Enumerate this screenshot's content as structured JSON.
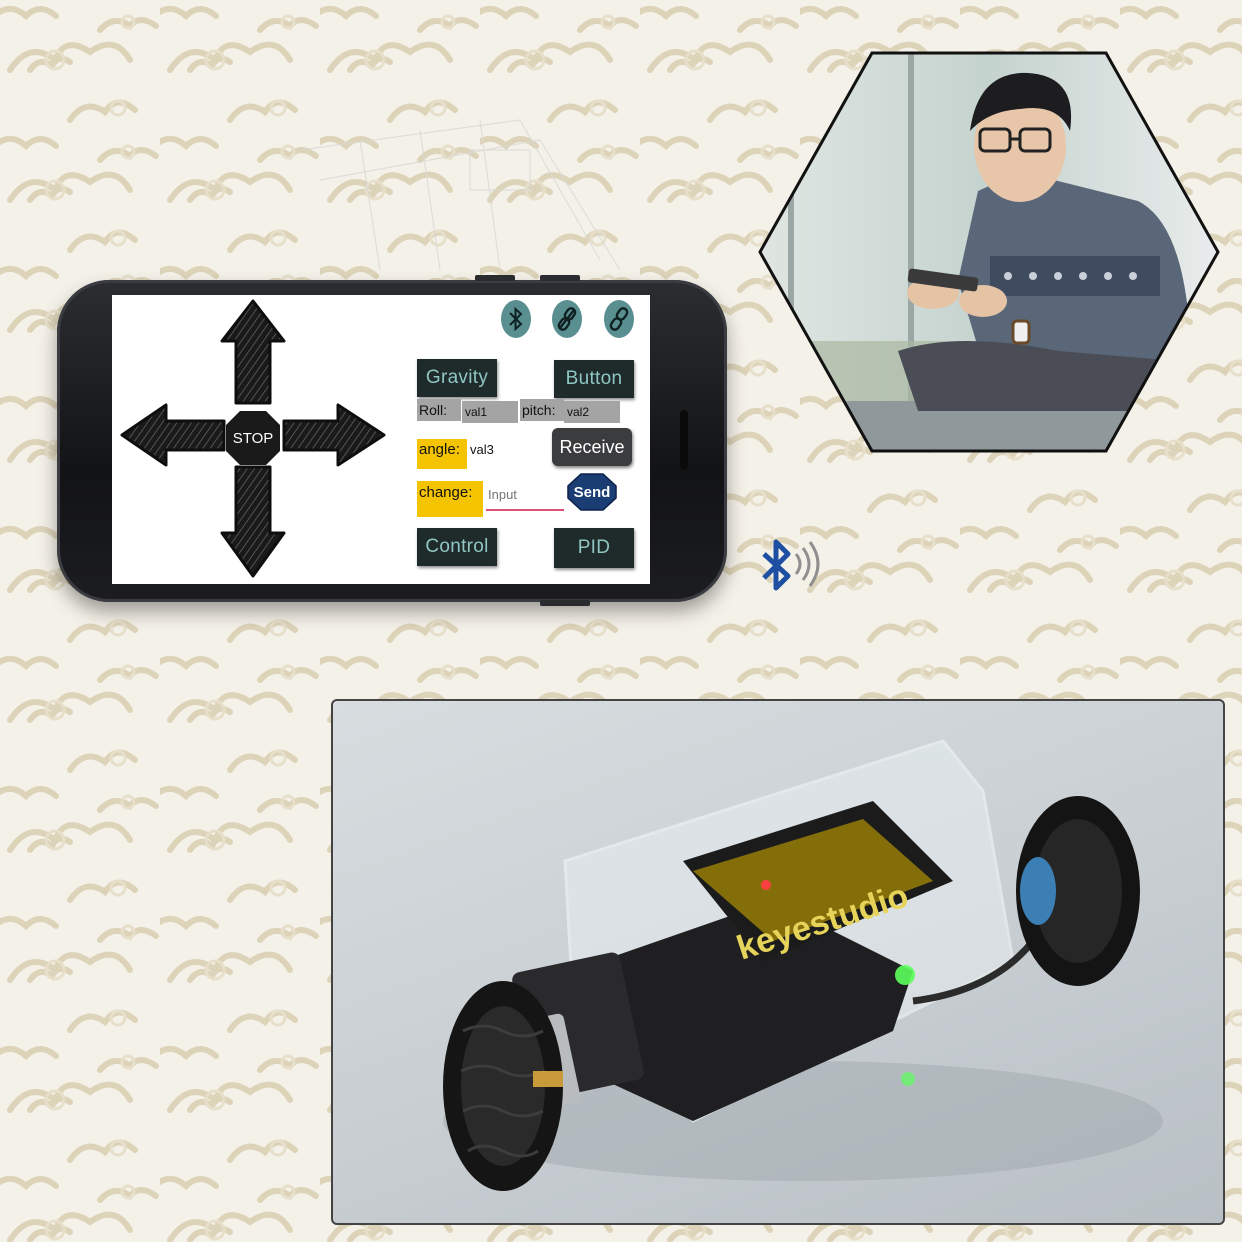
{
  "app": {
    "dpad": {
      "stop_label": "STOP"
    },
    "icons": [
      "bluetooth-icon",
      "link-broken-icon",
      "link-icon"
    ],
    "buttons": {
      "gravity": "Gravity",
      "button": "Button",
      "receive": "Receive",
      "send": "Send",
      "control": "Control",
      "pid": "PID"
    },
    "fields": {
      "roll_label": "Roll:",
      "roll_value": "val1",
      "pitch_label": "pitch:",
      "pitch_value": "val2",
      "angle_label": "angle:",
      "angle_value": "val3",
      "change_label": "change:",
      "change_placeholder": "Input"
    }
  },
  "robot": {
    "brand_text": "keyestudio"
  },
  "colors": {
    "button_bg": "#1f2b2a",
    "button_text": "#8fc6c4",
    "highlight_yellow": "#f5c400",
    "value_gray": "#a4a4a4",
    "icon_teal": "#5a8f92",
    "send_blue": "#1a3d74",
    "bluetooth_blue": "#1e4fa3"
  }
}
